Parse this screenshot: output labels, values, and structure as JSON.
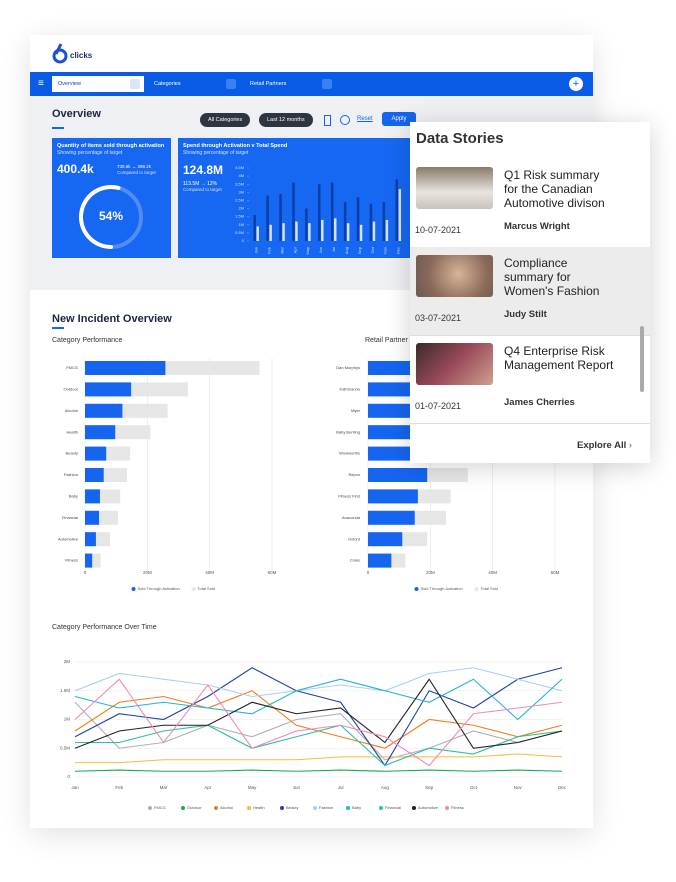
{
  "header": {
    "logo": "clicks",
    "nav": [
      "Overview",
      "Categories",
      "Retail Partners"
    ]
  },
  "overview": {
    "title": "Overview",
    "filters": [
      "All Categories",
      "Last 12 months"
    ],
    "reset": "Reset",
    "apply": "Apply"
  },
  "kpis": [
    {
      "title": "Quantity of items sold through activation",
      "subtitle": "Showing percentage of target",
      "value": "400.4k",
      "compare": "730.6k → 398.2k",
      "compare_label": "Compared to target"
    },
    {
      "title": "Spend through Activation v Total Spend",
      "subtitle": "Showing percentage of target",
      "value": "124.8M",
      "compare": "113.5M → 12%",
      "compare_label": "Compared to target"
    }
  ],
  "incidents": {
    "title": "New Incident Overview"
  },
  "stories": {
    "title": "Data Stories",
    "explore": "Explore All",
    "items": [
      {
        "date": "10-07-2021",
        "title": "Q1 Risk summary for the Canadian Automotive divison",
        "author": "Marcus Wright"
      },
      {
        "date": "03-07-2021",
        "title": "Compliance summary for Women's Fashion",
        "author": "Judy Stilt"
      },
      {
        "date": "01-07-2021",
        "title": "Q4 Enterprise Risk Management Report",
        "author": "James Cherries"
      }
    ]
  },
  "chart_data": [
    {
      "type": "gauge",
      "values": [
        54
      ],
      "value_labels": [
        "54%"
      ],
      "ylim": [
        0,
        100
      ],
      "color": "#ffffff"
    },
    {
      "type": "bar",
      "categories": [
        "Jan",
        "Feb",
        "Mar",
        "Apr",
        "May",
        "Jun",
        "Jul",
        "Aug",
        "Sep",
        "Oct",
        "Nov",
        "Dec"
      ],
      "series": [
        {
          "color": "#0a3fa8",
          "values": [
            1600000,
            2800000,
            2900000,
            3600000,
            2000000,
            3500000,
            3600000,
            2400000,
            2700000,
            2300000,
            2400000,
            3800000
          ]
        },
        {
          "color": "#d4e3ff",
          "values": [
            900000,
            1000000,
            1100000,
            1200000,
            1100000,
            1300000,
            1400000,
            1100000,
            1000000,
            1200000,
            1300000,
            3200000
          ]
        }
      ],
      "ylim": [
        0,
        4500000
      ],
      "yticks": [
        0,
        {
          "value": 500000,
          "label": "0.5M"
        },
        {
          "value": 1000000,
          "label": "1M"
        },
        {
          "value": 1500000,
          "label": "1.5M"
        },
        {
          "value": 2000000,
          "label": "2M"
        },
        {
          "value": 2500000,
          "label": "2.5M"
        },
        {
          "value": 3000000,
          "label": "3M"
        },
        {
          "value": 3500000,
          "label": "3.5M"
        },
        {
          "value": 4000000,
          "label": "4M"
        },
        {
          "value": 4500000,
          "label": "4.5M"
        }
      ]
    },
    {
      "type": "hbar",
      "title": "Category Performance",
      "categories": [
        "FMCG",
        "Outdoor",
        "Alcohol",
        "Health",
        "Beauty",
        "Fashion",
        "Baby",
        "Financial",
        "Automotive",
        "Fitness"
      ],
      "series": [
        {
          "name": "Total Sold",
          "color": "#e6e6e6",
          "values": [
            56000000,
            33000000,
            26500000,
            21000000,
            14500000,
            13500000,
            11300000,
            10600000,
            8000000,
            5000000
          ]
        },
        {
          "name": "Sold Through Activation",
          "color": "#1565f0",
          "values": [
            25800000,
            14800000,
            12000000,
            9700000,
            6800000,
            6000000,
            4800000,
            4500000,
            3500000,
            2300000
          ]
        }
      ],
      "xlim": [
        0,
        60000000
      ],
      "xticks": [
        0,
        {
          "value": 20000000,
          "label": "20M"
        },
        {
          "value": 40000000,
          "label": "40M"
        },
        {
          "value": 60000000,
          "label": "60M"
        }
      ],
      "grid": true
    },
    {
      "type": "hbar",
      "title": "Retail Partner Performance",
      "categories": [
        "Dan Murphys",
        "Kathmandu",
        "Myer",
        "Baby Bunting",
        "Woolworths",
        "Repco",
        "Fitness First",
        "Anaconda",
        "Oxford",
        "Coles"
      ],
      "series": [
        {
          "name": "Total Sold",
          "color": "#e6e6e6",
          "values": [
            58000000,
            52000000,
            48000000,
            42000000,
            36000000,
            32000000,
            26500000,
            25000000,
            19000000,
            12000000
          ]
        },
        {
          "name": "Sold Through Activation",
          "color": "#1565f0",
          "values": [
            40000000,
            35000000,
            30000000,
            26000000,
            22000000,
            19000000,
            16000000,
            15000000,
            11000000,
            7500000
          ]
        }
      ],
      "xlim": [
        0,
        60000000
      ],
      "xticks": [
        0,
        {
          "value": 20000000,
          "label": "20M"
        },
        {
          "value": 40000000,
          "label": "40M"
        },
        {
          "value": 60000000,
          "label": "60M"
        }
      ],
      "grid": true
    },
    {
      "type": "line",
      "title": "Category Performance Over Time",
      "categories": [
        "Jan",
        "Feb",
        "Mar",
        "Apr",
        "May",
        "Jun",
        "Jul",
        "Aug",
        "Sep",
        "Oct",
        "Nov",
        "Dec"
      ],
      "series": [
        {
          "name": "FMCG",
          "color": "#b0b0b0",
          "values": [
            1300000,
            500000,
            600000,
            900000,
            700000,
            1000000,
            1100000,
            300000,
            500000,
            800000,
            600000,
            800000
          ]
        },
        {
          "name": "Outdoor",
          "color": "#1aa84a",
          "values": [
            100000,
            120000,
            100000,
            100000,
            120000,
            100000,
            120000,
            100000,
            120000,
            100000,
            120000,
            100000
          ]
        },
        {
          "name": "Alcohol",
          "color": "#f07d1a",
          "values": [
            800000,
            1300000,
            1400000,
            1200000,
            1500000,
            900000,
            700000,
            500000,
            1000000,
            900000,
            700000,
            900000
          ]
        },
        {
          "name": "Health",
          "color": "#f5b942",
          "values": [
            250000,
            250000,
            300000,
            300000,
            300000,
            300000,
            350000,
            350000,
            350000,
            350000,
            400000,
            350000
          ]
        },
        {
          "name": "Beauty",
          "color": "#1e3fae",
          "values": [
            700000,
            1100000,
            1000000,
            1400000,
            1900000,
            1500000,
            1300000,
            200000,
            1500000,
            1200000,
            1700000,
            1900000
          ]
        },
        {
          "name": "Fashion",
          "color": "#a9cdf5",
          "values": [
            1500000,
            1800000,
            1700000,
            1600000,
            1400000,
            1500000,
            1600000,
            1500000,
            1800000,
            1900000,
            1700000,
            1500000
          ]
        },
        {
          "name": "Baby",
          "color": "#1fb5d6",
          "values": [
            1400000,
            1200000,
            1300000,
            1200000,
            1100000,
            1500000,
            1700000,
            1500000,
            1300000,
            1700000,
            1000000,
            1700000
          ]
        },
        {
          "name": "Financial",
          "color": "#2bbfa6",
          "values": [
            600000,
            600000,
            800000,
            900000,
            500000,
            700000,
            900000,
            200000,
            500000,
            400000,
            700000,
            800000
          ]
        },
        {
          "name": "Automotive",
          "color": "#222222",
          "values": [
            500000,
            800000,
            900000,
            900000,
            1300000,
            1100000,
            1200000,
            600000,
            1700000,
            500000,
            600000,
            800000
          ]
        },
        {
          "name": "Fitness",
          "color": "#f08ab8",
          "values": [
            1000000,
            1700000,
            600000,
            1600000,
            500000,
            800000,
            900000,
            700000,
            200000,
            1100000,
            1200000,
            1300000
          ]
        }
      ],
      "ylim": [
        0,
        2000000
      ],
      "yticks": [
        0,
        {
          "value": 500000,
          "label": "0.5M"
        },
        {
          "value": 1000000,
          "label": "1M"
        },
        {
          "value": 1500000,
          "label": "1.5M"
        },
        {
          "value": 2000000,
          "label": "2M"
        }
      ],
      "grid": true
    }
  ]
}
